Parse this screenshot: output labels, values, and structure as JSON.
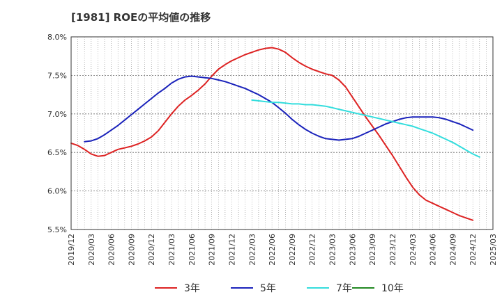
{
  "chart_data": {
    "type": "line",
    "title": "[1981]  ROEの平均値の推移",
    "xlabel": "",
    "ylabel": "",
    "ylim": [
      5.5,
      8.0
    ],
    "yticks": [
      "5.5%",
      "6.0%",
      "6.5%",
      "7.0%",
      "7.5%",
      "8.0%"
    ],
    "xticks": [
      "2019/12",
      "2020/03",
      "2020/06",
      "2020/09",
      "2020/12",
      "2021/03",
      "2021/06",
      "2021/09",
      "2021/12",
      "2022/03",
      "2022/06",
      "2022/09",
      "2022/12",
      "2023/03",
      "2023/06",
      "2023/09",
      "2023/12",
      "2024/03",
      "2024/06",
      "2024/09",
      "2024/12",
      "2025/03"
    ],
    "grid": true,
    "legend": "bottom",
    "series": [
      {
        "name": "3年",
        "color": "#dd2222",
        "points": [
          [
            "2019/12",
            6.62
          ],
          [
            "2020/01",
            6.59
          ],
          [
            "2020/02",
            6.54
          ],
          [
            "2020/03",
            6.48
          ],
          [
            "2020/04",
            6.45
          ],
          [
            "2020/05",
            6.46
          ],
          [
            "2020/06",
            6.5
          ],
          [
            "2020/07",
            6.54
          ],
          [
            "2020/08",
            6.56
          ],
          [
            "2020/09",
            6.58
          ],
          [
            "2020/10",
            6.61
          ],
          [
            "2020/11",
            6.65
          ],
          [
            "2020/12",
            6.7
          ],
          [
            "2021/01",
            6.78
          ],
          [
            "2021/02",
            6.89
          ],
          [
            "2021/03",
            7.0
          ],
          [
            "2021/04",
            7.1
          ],
          [
            "2021/05",
            7.18
          ],
          [
            "2021/06",
            7.24
          ],
          [
            "2021/07",
            7.31
          ],
          [
            "2021/08",
            7.39
          ],
          [
            "2021/09",
            7.49
          ],
          [
            "2021/10",
            7.58
          ],
          [
            "2021/11",
            7.64
          ],
          [
            "2021/12",
            7.69
          ],
          [
            "2022/01",
            7.73
          ],
          [
            "2022/02",
            7.77
          ],
          [
            "2022/03",
            7.8
          ],
          [
            "2022/04",
            7.83
          ],
          [
            "2022/05",
            7.85
          ],
          [
            "2022/06",
            7.86
          ],
          [
            "2022/07",
            7.84
          ],
          [
            "2022/08",
            7.8
          ],
          [
            "2022/09",
            7.73
          ],
          [
            "2022/10",
            7.67
          ],
          [
            "2022/11",
            7.62
          ],
          [
            "2022/12",
            7.58
          ],
          [
            "2023/01",
            7.55
          ],
          [
            "2023/02",
            7.52
          ],
          [
            "2023/03",
            7.5
          ],
          [
            "2023/04",
            7.44
          ],
          [
            "2023/05",
            7.35
          ],
          [
            "2023/06",
            7.22
          ],
          [
            "2023/07",
            7.09
          ],
          [
            "2023/08",
            6.96
          ],
          [
            "2023/09",
            6.84
          ],
          [
            "2023/10",
            6.72
          ],
          [
            "2023/11",
            6.59
          ],
          [
            "2023/12",
            6.46
          ],
          [
            "2024/01",
            6.32
          ],
          [
            "2024/02",
            6.18
          ],
          [
            "2024/03",
            6.05
          ],
          [
            "2024/04",
            5.95
          ],
          [
            "2024/05",
            5.88
          ],
          [
            "2024/06",
            5.84
          ],
          [
            "2024/07",
            5.8
          ],
          [
            "2024/08",
            5.76
          ],
          [
            "2024/09",
            5.72
          ],
          [
            "2024/10",
            5.68
          ],
          [
            "2024/11",
            5.65
          ],
          [
            "2024/12",
            5.62
          ]
        ]
      },
      {
        "name": "5年",
        "color": "#1a22bb",
        "points": [
          [
            "2020/02",
            6.64
          ],
          [
            "2020/03",
            6.65
          ],
          [
            "2020/04",
            6.68
          ],
          [
            "2020/05",
            6.73
          ],
          [
            "2020/06",
            6.79
          ],
          [
            "2020/07",
            6.85
          ],
          [
            "2020/08",
            6.92
          ],
          [
            "2020/09",
            6.99
          ],
          [
            "2020/10",
            7.06
          ],
          [
            "2020/11",
            7.13
          ],
          [
            "2020/12",
            7.2
          ],
          [
            "2021/01",
            7.27
          ],
          [
            "2021/02",
            7.33
          ],
          [
            "2021/03",
            7.4
          ],
          [
            "2021/04",
            7.45
          ],
          [
            "2021/05",
            7.48
          ],
          [
            "2021/06",
            7.49
          ],
          [
            "2021/07",
            7.48
          ],
          [
            "2021/08",
            7.47
          ],
          [
            "2021/09",
            7.46
          ],
          [
            "2021/10",
            7.44
          ],
          [
            "2021/11",
            7.42
          ],
          [
            "2021/12",
            7.39
          ],
          [
            "2022/01",
            7.36
          ],
          [
            "2022/02",
            7.33
          ],
          [
            "2022/03",
            7.29
          ],
          [
            "2022/04",
            7.25
          ],
          [
            "2022/05",
            7.2
          ],
          [
            "2022/06",
            7.15
          ],
          [
            "2022/07",
            7.08
          ],
          [
            "2022/08",
            7.01
          ],
          [
            "2022/09",
            6.93
          ],
          [
            "2022/10",
            6.86
          ],
          [
            "2022/11",
            6.8
          ],
          [
            "2022/12",
            6.75
          ],
          [
            "2023/01",
            6.71
          ],
          [
            "2023/02",
            6.68
          ],
          [
            "2023/03",
            6.67
          ],
          [
            "2023/04",
            6.66
          ],
          [
            "2023/05",
            6.67
          ],
          [
            "2023/06",
            6.68
          ],
          [
            "2023/07",
            6.71
          ],
          [
            "2023/08",
            6.75
          ],
          [
            "2023/09",
            6.79
          ],
          [
            "2023/10",
            6.83
          ],
          [
            "2023/11",
            6.87
          ],
          [
            "2023/12",
            6.9
          ],
          [
            "2024/01",
            6.93
          ],
          [
            "2024/02",
            6.95
          ],
          [
            "2024/03",
            6.96
          ],
          [
            "2024/04",
            6.96
          ],
          [
            "2024/05",
            6.96
          ],
          [
            "2024/06",
            6.96
          ],
          [
            "2024/07",
            6.95
          ],
          [
            "2024/08",
            6.93
          ],
          [
            "2024/09",
            6.9
          ],
          [
            "2024/10",
            6.87
          ],
          [
            "2024/11",
            6.83
          ],
          [
            "2024/12",
            6.79
          ]
        ]
      },
      {
        "name": "7年",
        "color": "#33dddd",
        "points": [
          [
            "2022/03",
            7.18
          ],
          [
            "2022/04",
            7.17
          ],
          [
            "2022/05",
            7.16
          ],
          [
            "2022/06",
            7.15
          ],
          [
            "2022/07",
            7.15
          ],
          [
            "2022/08",
            7.14
          ],
          [
            "2022/09",
            7.13
          ],
          [
            "2022/10",
            7.13
          ],
          [
            "2022/11",
            7.12
          ],
          [
            "2022/12",
            7.12
          ],
          [
            "2023/01",
            7.11
          ],
          [
            "2023/02",
            7.1
          ],
          [
            "2023/03",
            7.08
          ],
          [
            "2023/04",
            7.06
          ],
          [
            "2023/05",
            7.04
          ],
          [
            "2023/06",
            7.02
          ],
          [
            "2023/07",
            7.0
          ],
          [
            "2023/08",
            6.98
          ],
          [
            "2023/09",
            6.96
          ],
          [
            "2023/10",
            6.94
          ],
          [
            "2023/11",
            6.92
          ],
          [
            "2023/12",
            6.9
          ],
          [
            "2024/01",
            6.88
          ],
          [
            "2024/02",
            6.86
          ],
          [
            "2024/03",
            6.84
          ],
          [
            "2024/04",
            6.81
          ],
          [
            "2024/05",
            6.78
          ],
          [
            "2024/06",
            6.75
          ],
          [
            "2024/07",
            6.71
          ],
          [
            "2024/08",
            6.67
          ],
          [
            "2024/09",
            6.63
          ],
          [
            "2024/10",
            6.58
          ],
          [
            "2024/11",
            6.53
          ],
          [
            "2024/12",
            6.48
          ],
          [
            "2025/01",
            6.44
          ]
        ]
      },
      {
        "name": "10年",
        "color": "#228822",
        "points": []
      }
    ]
  }
}
